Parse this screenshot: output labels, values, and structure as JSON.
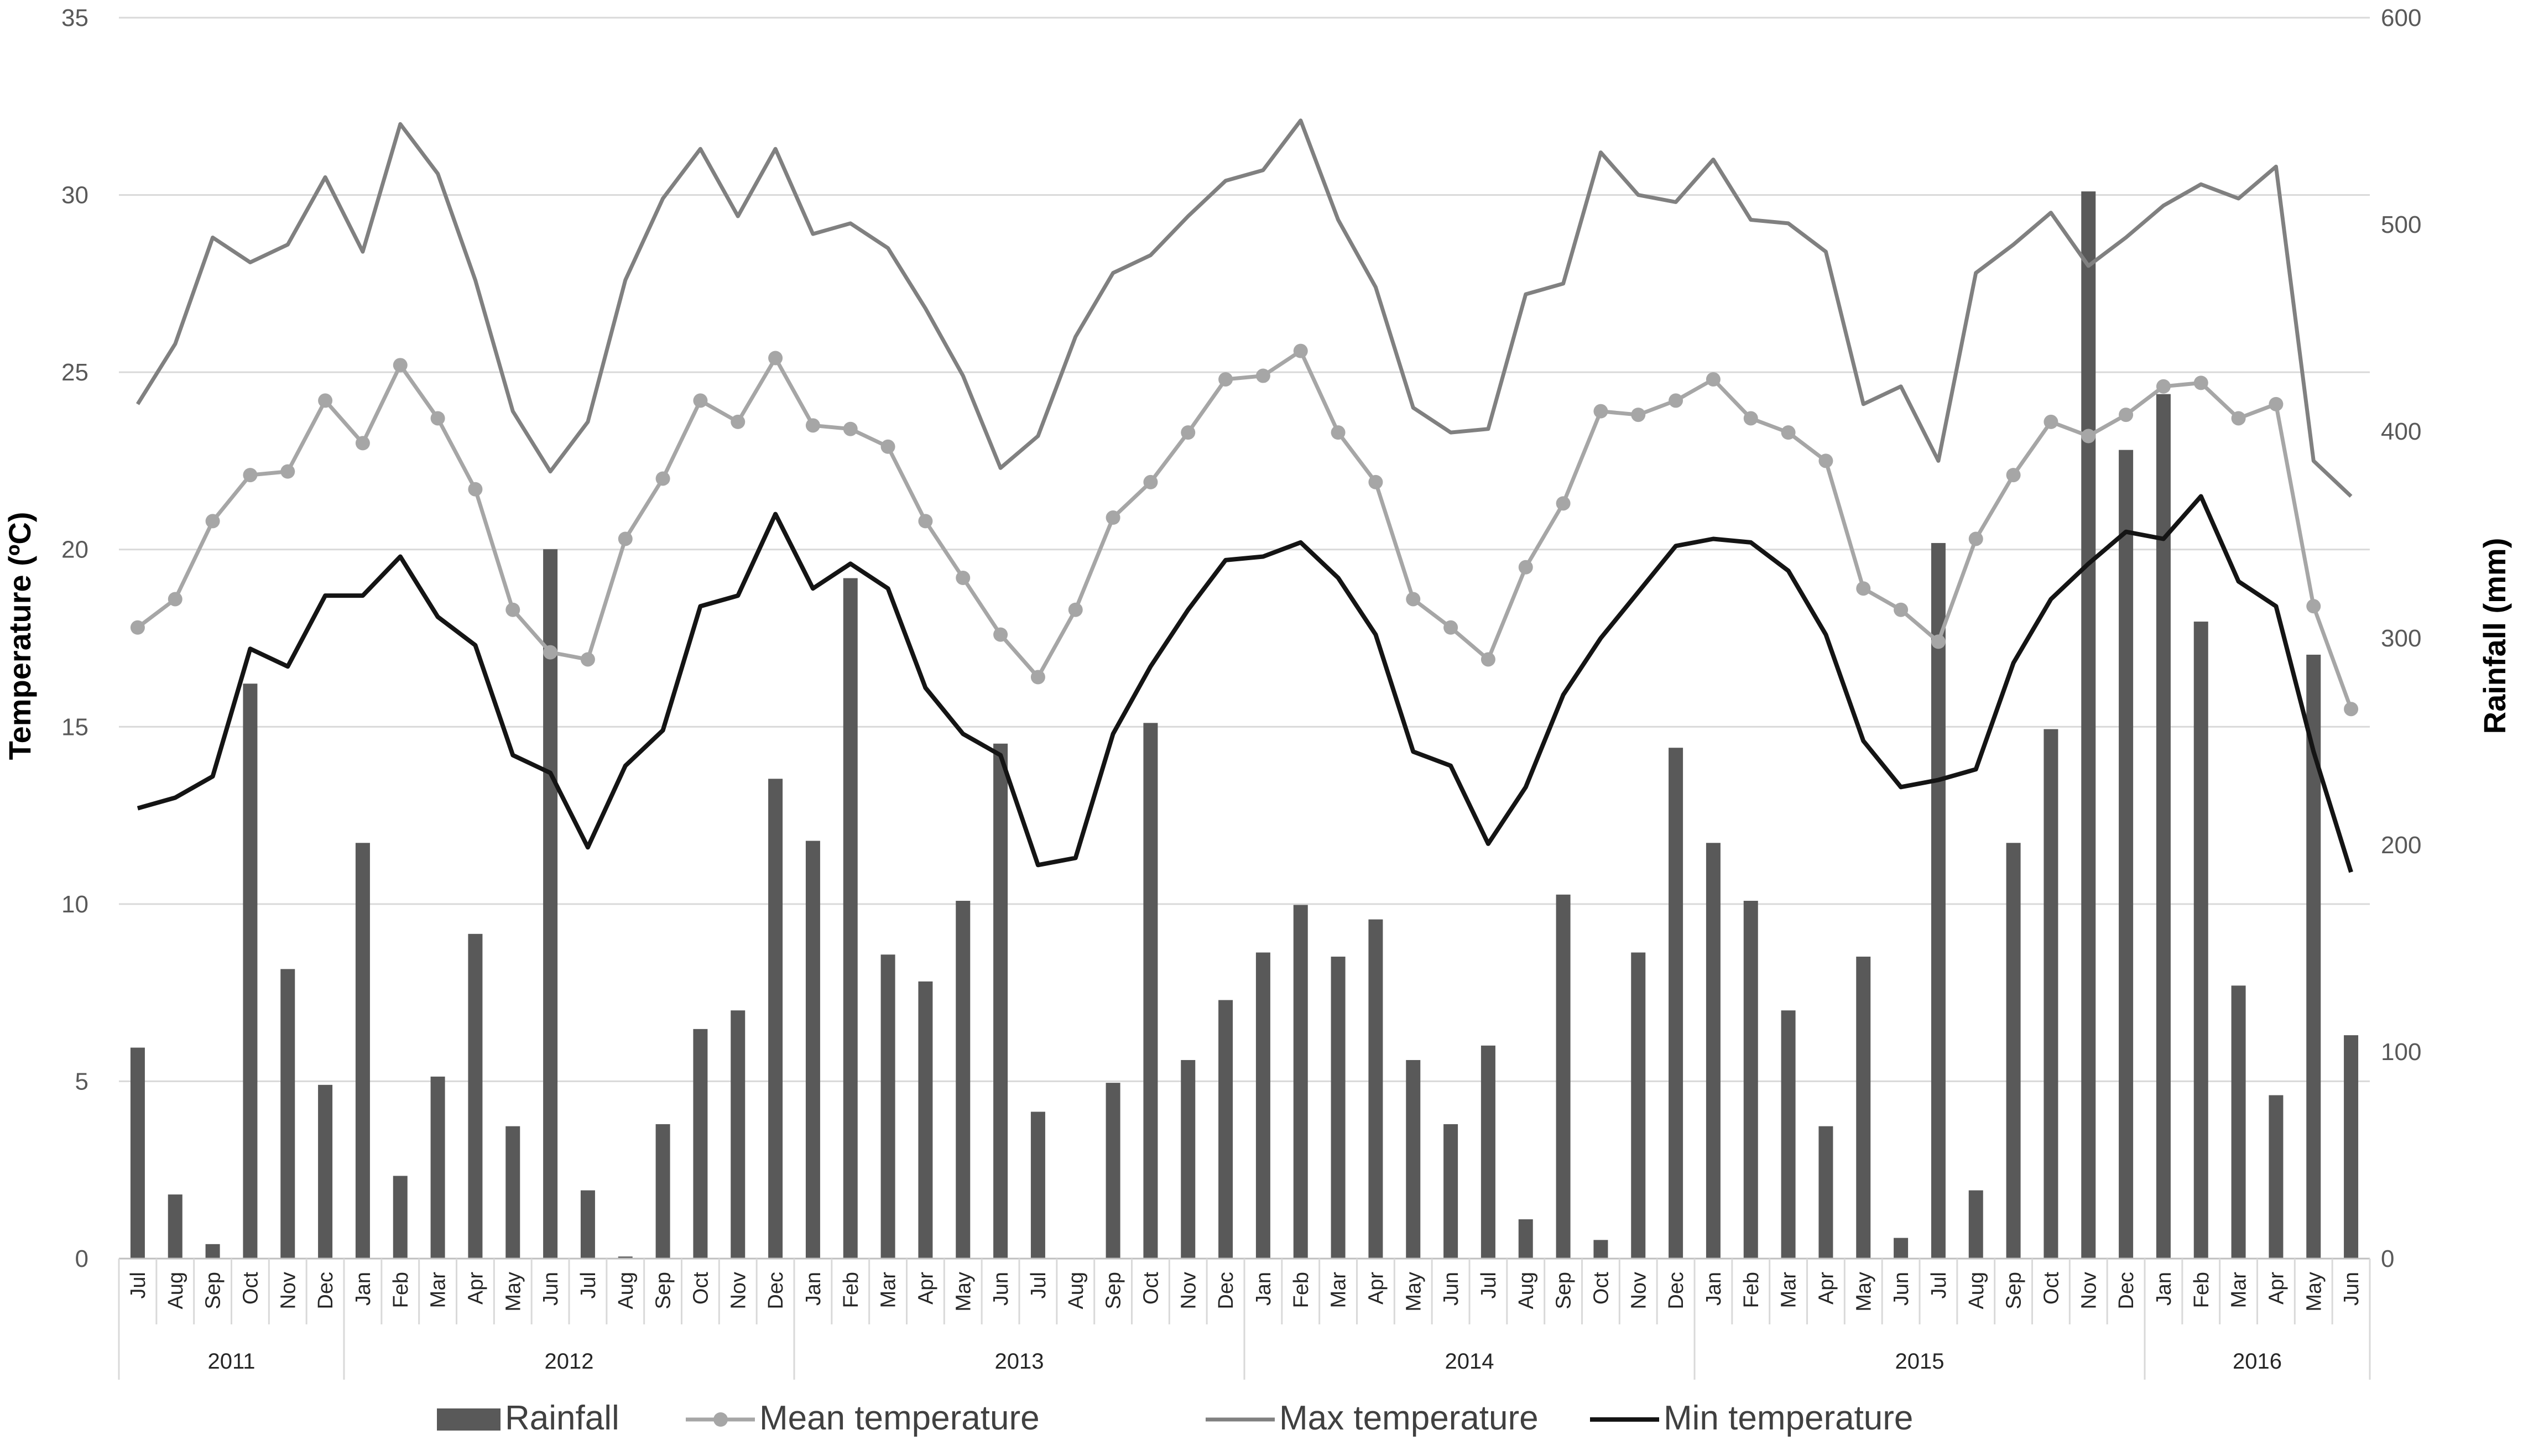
{
  "chart_data": {
    "type": "bar",
    "xlabel": "",
    "ylabel": "Temperature (ºC)",
    "y2label": "Rainfall (mm)",
    "ylim": [
      0,
      35
    ],
    "y2lim": [
      0,
      600
    ],
    "yticks": [
      "0",
      "5",
      "10",
      "15",
      "20",
      "25",
      "30",
      "35"
    ],
    "y2ticks": [
      "0",
      "100",
      "200",
      "300",
      "400",
      "500",
      "600"
    ],
    "grid": "horizontal",
    "legend_position": "bottom",
    "categories": [
      "Jul",
      "Aug",
      "Sep",
      "Oct",
      "Nov",
      "Dec",
      "Jan",
      "Feb",
      "Mar",
      "Apr",
      "May",
      "Jun",
      "Jul",
      "Aug",
      "Sep",
      "Oct",
      "Nov",
      "Dec",
      "Jan",
      "Feb",
      "Mar",
      "Apr",
      "May",
      "Jun",
      "Jul",
      "Aug",
      "Sep",
      "Oct",
      "Nov",
      "Dec",
      "Jan",
      "Feb",
      "Mar",
      "Apr",
      "May",
      "Jun",
      "Jul",
      "Aug",
      "Sep",
      "Oct",
      "Nov",
      "Dec",
      "Jan",
      "Feb",
      "Mar",
      "Apr",
      "May",
      "Jun",
      "Jul",
      "Aug",
      "Sep",
      "Oct",
      "Nov",
      "Dec",
      "Jan",
      "Feb",
      "Mar",
      "Apr",
      "May",
      "Jun"
    ],
    "years": [
      {
        "label": "2011",
        "start": 0,
        "count": 6
      },
      {
        "label": "2012",
        "start": 6,
        "count": 12
      },
      {
        "label": "2013",
        "start": 18,
        "count": 12
      },
      {
        "label": "2014",
        "start": 30,
        "count": 12
      },
      {
        "label": "2015",
        "start": 42,
        "count": 12
      },
      {
        "label": "2016",
        "start": 54,
        "count": 6
      }
    ],
    "series": [
      {
        "name": "Rainfall",
        "type": "bar",
        "axis": "right",
        "color": "#595959",
        "values": [
          102,
          31,
          7,
          278,
          140,
          84,
          201,
          40,
          88,
          157,
          64,
          343,
          33,
          1,
          65,
          111,
          120,
          232,
          202,
          329,
          147,
          134,
          173,
          249,
          71,
          0,
          85,
          259,
          96,
          125,
          148,
          171,
          146,
          164,
          96,
          65,
          103,
          19,
          176,
          9,
          148,
          247,
          201,
          173,
          120,
          64,
          146,
          10,
          346,
          33,
          201,
          256,
          516,
          391,
          418,
          308,
          132,
          79,
          292,
          108
        ]
      },
      {
        "name": "Mean temperature",
        "type": "line",
        "axis": "left",
        "color": "#a6a6a6",
        "marker": "circle",
        "values": [
          17.8,
          18.6,
          20.8,
          22.1,
          22.2,
          24.2,
          23,
          25.2,
          23.7,
          21.7,
          18.3,
          17.1,
          16.9,
          20.3,
          22,
          24.2,
          23.6,
          25.4,
          23.5,
          23.4,
          22.9,
          20.8,
          19.2,
          17.6,
          16.4,
          18.3,
          20.9,
          21.9,
          23.3,
          24.8,
          24.9,
          25.6,
          23.3,
          21.9,
          18.6,
          17.8,
          16.9,
          19.5,
          21.3,
          23.9,
          23.8,
          24.2,
          24.8,
          23.7,
          23.3,
          22.5,
          18.9,
          18.3,
          17.4,
          20.3,
          22.1,
          23.6,
          23.2,
          23.8,
          24.6,
          24.7,
          23.7,
          24.1,
          18.4,
          15.5
        ]
      },
      {
        "name": "Max temperature",
        "type": "line",
        "axis": "left",
        "color": "#808080",
        "values": [
          24.1,
          25.8,
          28.8,
          28.1,
          28.6,
          30.5,
          28.4,
          32,
          30.6,
          27.6,
          23.9,
          22.2,
          23.6,
          27.6,
          29.9,
          31.3,
          29.4,
          31.3,
          28.9,
          29.2,
          28.5,
          26.8,
          24.9,
          22.3,
          23.2,
          26,
          27.8,
          28.3,
          29.4,
          30.4,
          30.7,
          32.1,
          29.3,
          27.4,
          24,
          23.3,
          23.4,
          27.2,
          27.5,
          31.2,
          30,
          29.8,
          31,
          29.3,
          29.2,
          28.4,
          24.1,
          24.6,
          22.5,
          27.8,
          28.6,
          29.5,
          28,
          28.8,
          29.7,
          30.3,
          29.9,
          30.8,
          22.5,
          21.5
        ]
      },
      {
        "name": "Min temperature",
        "type": "line",
        "axis": "left",
        "color": "#141414",
        "values": [
          12.7,
          13,
          13.6,
          17.2,
          16.7,
          18.7,
          18.7,
          19.8,
          18.1,
          17.3,
          14.2,
          13.7,
          11.6,
          13.9,
          14.9,
          18.4,
          18.7,
          21,
          18.9,
          19.6,
          18.9,
          16.1,
          14.8,
          14.2,
          11.1,
          11.3,
          14.8,
          16.7,
          18.3,
          19.7,
          19.8,
          20.2,
          19.2,
          17.6,
          14.3,
          13.9,
          11.7,
          13.3,
          15.9,
          17.5,
          18.8,
          20.1,
          20.3,
          20.2,
          19.4,
          17.6,
          14.6,
          13.3,
          13.5,
          13.8,
          16.8,
          18.6,
          19.6,
          20.5,
          20.3,
          21.5,
          19.1,
          18.4,
          14.3,
          10.9
        ]
      }
    ]
  }
}
